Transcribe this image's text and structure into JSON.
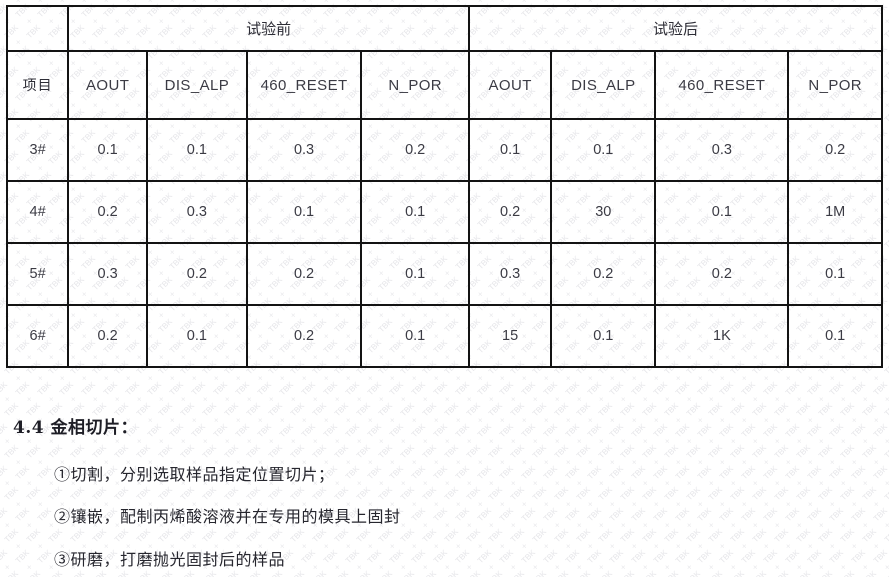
{
  "watermark": {
    "text": "TBK",
    "plus_glyph": "+",
    "color": "#d9d9e0"
  },
  "colors": {
    "table_border": "#131313",
    "table_text": "#3b3b44",
    "body_text": "#26262e"
  },
  "table": {
    "corner_label": "项目",
    "group_headers": [
      {
        "label": "试验前"
      },
      {
        "label": "试验后"
      }
    ],
    "sub_headers": [
      "AOUT",
      "DIS_ALP",
      "460_RESET",
      "N_POR",
      "AOUT",
      "DIS_ALP",
      "460_RESET",
      "N_POR"
    ],
    "rows": [
      {
        "item": "3#",
        "values": [
          "0.1",
          "0.1",
          "0.3",
          "0.2",
          "0.1",
          "0.1",
          "0.3",
          "0.2"
        ]
      },
      {
        "item": "4#",
        "values": [
          "0.2",
          "0.3",
          "0.1",
          "0.1",
          "0.2",
          "30",
          "0.1",
          "1M"
        ]
      },
      {
        "item": "5#",
        "values": [
          "0.3",
          "0.2",
          "0.2",
          "0.1",
          "0.3",
          "0.2",
          "0.2",
          "0.1"
        ]
      },
      {
        "item": "6#",
        "values": [
          "0.2",
          "0.1",
          "0.2",
          "0.1",
          "15",
          "0.1",
          "1K",
          "0.1"
        ]
      }
    ]
  },
  "section": {
    "heading": "4.4 金相切片：",
    "steps": [
      "①切割，分别选取样品指定位置切片；",
      "②镶嵌，配制丙烯酸溶液并在专用的模具上固封",
      "③研磨，打磨抛光固封后的样品"
    ]
  }
}
